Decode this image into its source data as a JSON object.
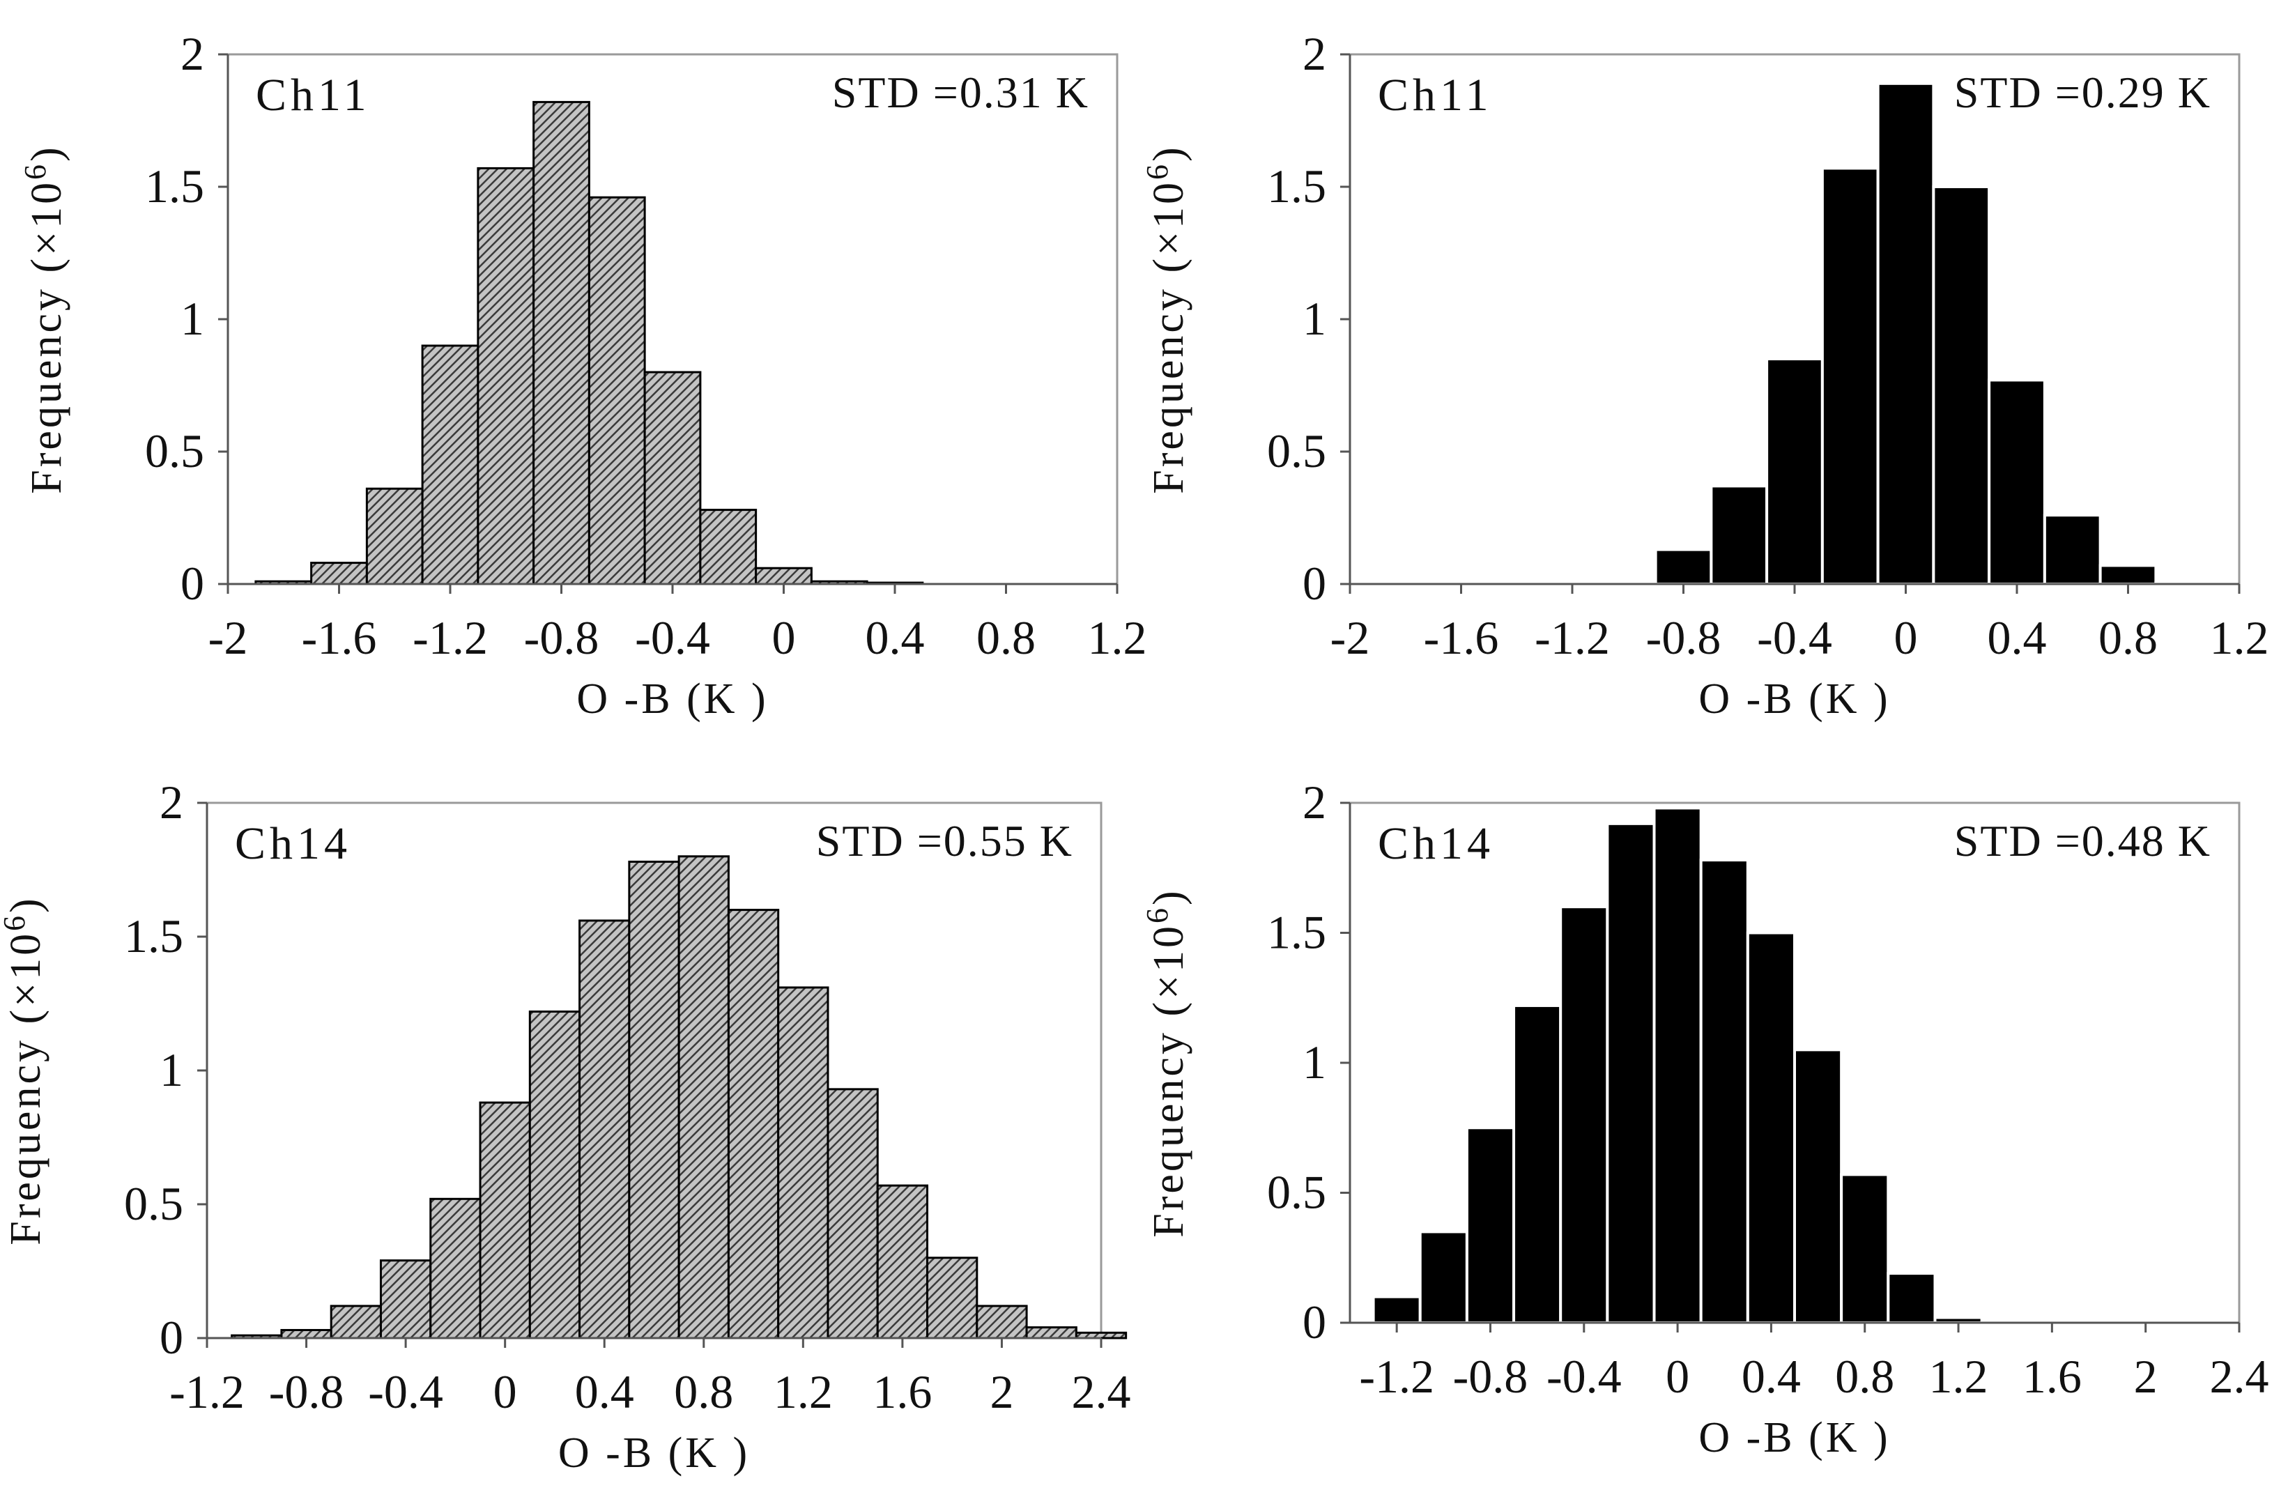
{
  "chart_data": [
    {
      "type": "bar",
      "title": "",
      "panel_label": "Ch11",
      "annotation": "STD =0.31 K",
      "style": "hatched",
      "bar_color": "#9a9a9a",
      "xlabel": "O -B (K )",
      "ylabel": "Frequency (×10",
      "ylabel_exponent": "6",
      "ylabel_close": ")",
      "xlim": [
        -2.0,
        1.2
      ],
      "ylim": [
        0,
        2
      ],
      "xticks": [
        "-2",
        "-1.6",
        "-1.2",
        "-0.8",
        "-0.4",
        "0",
        "0.4",
        "0.8",
        "1.2"
      ],
      "yticks": [
        "0",
        "0.5",
        "1",
        "1.5",
        "2"
      ],
      "bin_width": 0.2,
      "x": [
        -1.8,
        -1.6,
        -1.4,
        -1.2,
        -1.0,
        -0.8,
        -0.6,
        -0.4,
        -0.2,
        0.0,
        0.2,
        0.4
      ],
      "values": [
        0.01,
        0.08,
        0.36,
        0.9,
        1.57,
        1.82,
        1.46,
        0.8,
        0.28,
        0.06,
        0.01,
        0.005
      ]
    },
    {
      "type": "bar",
      "title": "",
      "panel_label": "Ch11",
      "annotation": "STD =0.29 K",
      "style": "solid",
      "bar_color": "#000000",
      "xlabel": "O -B (K )",
      "ylabel": "Frequency (×10",
      "ylabel_exponent": "6",
      "ylabel_close": ")",
      "xlim": [
        -2.0,
        1.2
      ],
      "ylim": [
        0,
        2
      ],
      "xticks": [
        "-2",
        "-1.6",
        "-1.2",
        "-0.8",
        "-0.4",
        "0",
        "0.4",
        "0.8",
        "1.2"
      ],
      "yticks": [
        "0",
        "0.5",
        "1",
        "1.5",
        "2"
      ],
      "bin_width": 0.2,
      "x": [
        -1.2,
        -1.0,
        -0.8,
        -0.6,
        -0.4,
        -0.2,
        0.0,
        0.2,
        0.4,
        0.6,
        0.8,
        1.0
      ],
      "values": [
        0.005,
        0.01,
        0.13,
        0.37,
        0.85,
        1.57,
        1.89,
        1.5,
        0.77,
        0.26,
        0.07,
        0.005
      ]
    },
    {
      "type": "bar",
      "title": "",
      "panel_label": "Ch14",
      "annotation": "STD =0.55 K",
      "style": "hatched",
      "bar_color": "#9a9a9a",
      "xlabel": "O -B (K )",
      "ylabel": "Frequency (×10",
      "ylabel_exponent": "6",
      "ylabel_close": ")",
      "xlim": [
        -1.2,
        2.4
      ],
      "ylim": [
        0,
        2
      ],
      "xticks": [
        "-1.2",
        "-0.8",
        "-0.4",
        "0",
        "0.4",
        "0.8",
        "1.2",
        "1.6",
        "2",
        "2.4"
      ],
      "yticks": [
        "0",
        "0.5",
        "1",
        "1.5",
        "2"
      ],
      "bin_width": 0.2,
      "x": [
        -1.0,
        -0.8,
        -0.6,
        -0.4,
        -0.2,
        0.0,
        0.2,
        0.4,
        0.6,
        0.8,
        1.0,
        1.2,
        1.4,
        1.6,
        1.8,
        2.0,
        2.2,
        2.4
      ],
      "values": [
        0.01,
        0.03,
        0.12,
        0.29,
        0.52,
        0.88,
        1.22,
        1.56,
        1.78,
        1.8,
        1.6,
        1.31,
        0.93,
        0.57,
        0.3,
        0.12,
        0.04,
        0.02
      ]
    },
    {
      "type": "bar",
      "title": "",
      "panel_label": "Ch14",
      "annotation": "STD =0.48 K",
      "style": "solid",
      "bar_color": "#000000",
      "xlabel": "O -B (K )",
      "ylabel": "Frequency (×10",
      "ylabel_exponent": "6",
      "ylabel_close": ")",
      "xlim": [
        -1.4,
        2.4
      ],
      "ylim": [
        0,
        2
      ],
      "xticks": [
        "-1.2",
        "-0.8",
        "-0.4",
        "0",
        "0.4",
        "0.8",
        "1.2",
        "1.6",
        "2",
        "2.4"
      ],
      "yticks": [
        "0",
        "0.5",
        "1",
        "1.5",
        "2"
      ],
      "bin_width": 0.2,
      "x": [
        -1.2,
        -1.0,
        -0.8,
        -0.6,
        -0.4,
        -0.2,
        0.0,
        0.2,
        0.4,
        0.6,
        0.8,
        1.0,
        1.2
      ],
      "values": [
        0.1,
        0.35,
        0.75,
        1.22,
        1.6,
        1.92,
        1.98,
        1.78,
        1.5,
        1.05,
        0.57,
        0.19,
        0.02
      ]
    }
  ]
}
